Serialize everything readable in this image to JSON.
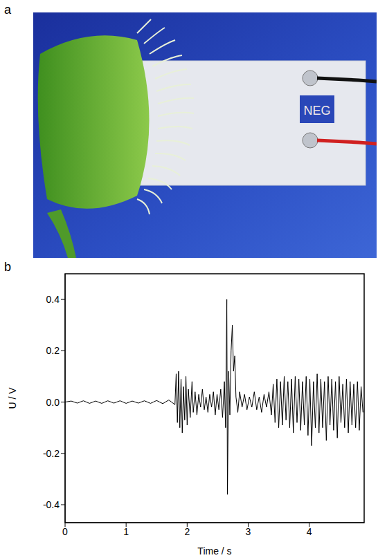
{
  "panel_a": {
    "label": "a",
    "texts": [
      "NEG"
    ]
  },
  "chart_data": {
    "label": "b",
    "type": "line",
    "x_label": "Time / s",
    "y_label": "U / V",
    "x": [
      0,
      0.1,
      0.2,
      0.3,
      0.4,
      0.5,
      0.6,
      0.7,
      0.8,
      0.9,
      1.0,
      1.1,
      1.2,
      1.3,
      1.4,
      1.5,
      1.6,
      1.7,
      1.8,
      1.82,
      1.84,
      1.86,
      1.88,
      1.9,
      1.92,
      1.94,
      1.96,
      1.98,
      2.0,
      2.02,
      2.05,
      2.08,
      2.1,
      2.13,
      2.16,
      2.19,
      2.22,
      2.25,
      2.28,
      2.31,
      2.34,
      2.37,
      2.4,
      2.43,
      2.46,
      2.49,
      2.52,
      2.55,
      2.58,
      2.61,
      2.63,
      2.65,
      2.66,
      2.68,
      2.7,
      2.72,
      2.74,
      2.76,
      2.78,
      2.8,
      2.83,
      2.86,
      2.9,
      2.94,
      2.98,
      3.02,
      3.06,
      3.1,
      3.14,
      3.18,
      3.22,
      3.26,
      3.3,
      3.34,
      3.38,
      3.41,
      3.44,
      3.47,
      3.5,
      3.53,
      3.56,
      3.59,
      3.62,
      3.65,
      3.68,
      3.71,
      3.74,
      3.77,
      3.8,
      3.83,
      3.86,
      3.89,
      3.92,
      3.95,
      3.98,
      4.01,
      4.04,
      4.07,
      4.1,
      4.13,
      4.16,
      4.19,
      4.22,
      4.25,
      4.28,
      4.31,
      4.34,
      4.37,
      4.4,
      4.43,
      4.46,
      4.49,
      4.52,
      4.55,
      4.58,
      4.61,
      4.64,
      4.67,
      4.7,
      4.73,
      4.76,
      4.79,
      4.82,
      4.85,
      4.88
    ],
    "values": [
      0,
      0.004,
      -0.004,
      0.005,
      -0.005,
      0.004,
      -0.005,
      0.005,
      -0.004,
      0.005,
      -0.005,
      0.004,
      -0.004,
      0.005,
      -0.005,
      0.006,
      -0.006,
      0.008,
      -0.01,
      0.11,
      -0.08,
      0.12,
      -0.1,
      0.09,
      -0.12,
      0.06,
      -0.07,
      0.1,
      -0.09,
      0.05,
      -0.06,
      0.08,
      -0.04,
      0.04,
      -0.05,
      0.03,
      -0.02,
      0.05,
      -0.03,
      0.02,
      -0.04,
      0.03,
      -0.02,
      0.04,
      -0.05,
      0.03,
      -0.03,
      0.05,
      -0.06,
      0.08,
      -0.1,
      0.4,
      -0.36,
      0.12,
      -0.05,
      0.2,
      0.3,
      0.12,
      0.18,
      0.02,
      -0.04,
      0.04,
      -0.02,
      0.03,
      -0.03,
      0.02,
      -0.02,
      0.04,
      -0.03,
      0.02,
      -0.04,
      0.03,
      -0.02,
      0.04,
      -0.05,
      0.07,
      -0.08,
      0.09,
      -0.1,
      0.08,
      -0.09,
      0.1,
      -0.07,
      0.08,
      -0.1,
      0.09,
      -0.12,
      0.1,
      -0.08,
      0.09,
      -0.11,
      0.08,
      -0.09,
      0.1,
      -0.13,
      0.09,
      -0.17,
      0.08,
      -0.1,
      0.11,
      -0.12,
      0.09,
      -0.1,
      0.08,
      -0.15,
      0.1,
      -0.09,
      0.09,
      -0.11,
      0.08,
      -0.14,
      0.1,
      -0.08,
      0.07,
      -0.1,
      0.09,
      -0.12,
      0.08,
      -0.09,
      0.07,
      -0.1,
      0.08,
      -0.11,
      0.06,
      -0.04
    ],
    "color": "#000000",
    "xlim": [
      0,
      4.9
    ],
    "xticks": [
      0,
      1,
      2,
      3,
      4
    ],
    "ylim": [
      -0.47,
      0.5
    ],
    "yticks": [
      -0.4,
      -0.2,
      {
        "value": 0,
        "label": "0.0"
      },
      0.2,
      0.4
    ],
    "grid": false
  }
}
